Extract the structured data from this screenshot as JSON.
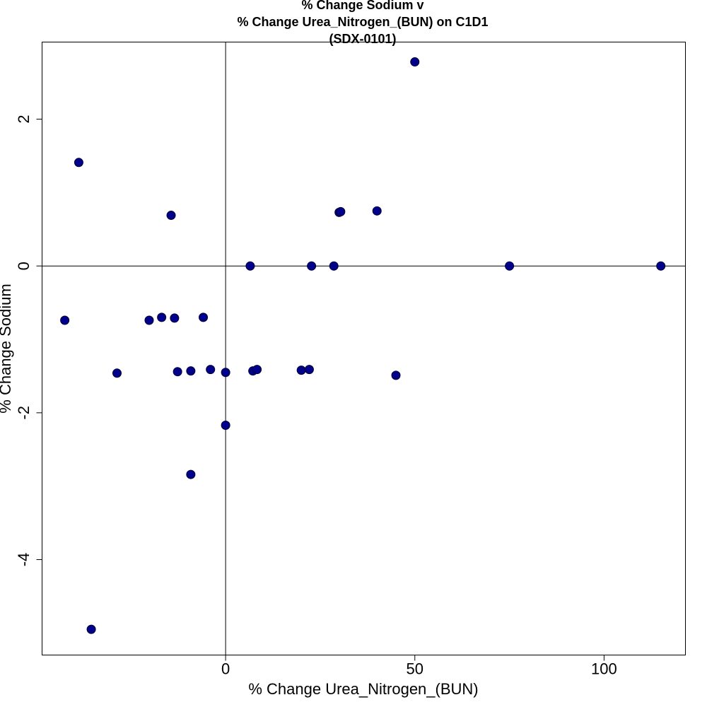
{
  "chart_data": {
    "type": "scatter",
    "title_lines": [
      "% Change Sodium v",
      "% Change Urea_Nitrogen_(BUN) on C1D1",
      "(SDX-0101)"
    ],
    "xlabel": "% Change Urea_Nitrogen_(BUN)",
    "ylabel": "% Change Sodium",
    "xlim": [
      -48.5,
      121.5
    ],
    "ylim": [
      -5.3,
      3.05
    ],
    "xticks": [
      0,
      50,
      100
    ],
    "yticks": [
      -4,
      -2,
      0,
      2
    ],
    "reference_lines": {
      "x": 0,
      "y": 0
    },
    "grid": false,
    "point_color": "#00008B",
    "x": [
      -42.5,
      -38.8,
      -35.5,
      -28.7,
      -20.2,
      -16.9,
      -14.4,
      -13.5,
      -12.7,
      -9.2,
      -9.2,
      -5.9,
      -4.0,
      0.0,
      0.0,
      6.5,
      7.2,
      8.3,
      20.0,
      22.1,
      22.7,
      28.6,
      30.0,
      30.4,
      40.0,
      45.0,
      50.0,
      75.0,
      115.0
    ],
    "y": [
      -0.74,
      1.41,
      -4.95,
      -1.46,
      -0.74,
      -0.7,
      0.69,
      -0.71,
      -1.44,
      -1.43,
      -2.84,
      -0.7,
      -1.41,
      -1.45,
      -2.17,
      0.0,
      -1.43,
      -1.41,
      -1.42,
      -1.41,
      0.0,
      0.0,
      0.73,
      0.74,
      0.75,
      -1.49,
      2.78,
      0.0,
      0.0
    ]
  }
}
